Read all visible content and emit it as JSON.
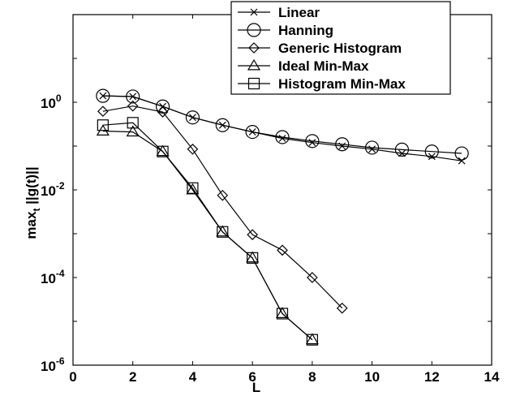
{
  "chart_data": {
    "type": "line",
    "title": "",
    "xlabel": "L",
    "ylabel_main": "max",
    "ylabel_sub": "t",
    "ylabel_rest": " ||g(t)||",
    "xlim": [
      0,
      14
    ],
    "ylim": [
      1e-06,
      100
    ],
    "yscale": "log",
    "x_ticks": [
      0,
      2,
      4,
      6,
      8,
      10,
      12,
      14
    ],
    "y_ticks": [
      {
        "value": 1,
        "base": "10",
        "exp": "0"
      },
      {
        "value": 0.01,
        "base": "10",
        "exp": "-2"
      },
      {
        "value": 0.0001,
        "base": "10",
        "exp": "-4"
      },
      {
        "value": 1e-06,
        "base": "10",
        "exp": "-6"
      }
    ],
    "grid": false,
    "legend_position": "top-right",
    "series": [
      {
        "name": "Linear",
        "marker": "x",
        "x": [
          1,
          2,
          3,
          4,
          5,
          6,
          7,
          8,
          9,
          10,
          11,
          12,
          13
        ],
        "y": [
          1.4,
          1.35,
          0.8,
          0.45,
          0.3,
          0.21,
          0.15,
          0.12,
          0.1,
          0.085,
          0.068,
          0.058,
          0.046
        ]
      },
      {
        "name": "Hanning",
        "marker": "circle",
        "x": [
          1,
          2,
          3,
          4,
          5,
          6,
          7,
          8,
          9,
          10,
          11,
          12,
          13
        ],
        "y": [
          1.4,
          1.35,
          0.8,
          0.45,
          0.3,
          0.21,
          0.16,
          0.13,
          0.11,
          0.092,
          0.083,
          0.075,
          0.068
        ]
      },
      {
        "name": "Generic Histogram",
        "marker": "diamond",
        "x": [
          1,
          2,
          3,
          4,
          5,
          6,
          7,
          8,
          9
        ],
        "y": [
          0.62,
          0.82,
          0.6,
          0.085,
          0.0075,
          0.00095,
          0.00042,
          0.0001,
          2e-05
        ]
      },
      {
        "name": "Ideal Min-Max",
        "marker": "triangle",
        "x": [
          1,
          2,
          3,
          4,
          5,
          6,
          7,
          8
        ],
        "y": [
          0.22,
          0.21,
          0.075,
          0.01,
          0.0011,
          0.00028,
          1.5e-05,
          3.8e-06
        ]
      },
      {
        "name": "Histogram Min-Max",
        "marker": "square",
        "x": [
          1,
          2,
          3,
          4,
          5,
          6,
          7,
          8
        ],
        "y": [
          0.3,
          0.34,
          0.075,
          0.011,
          0.0011,
          0.00028,
          1.5e-05,
          3.8e-06
        ]
      }
    ]
  }
}
